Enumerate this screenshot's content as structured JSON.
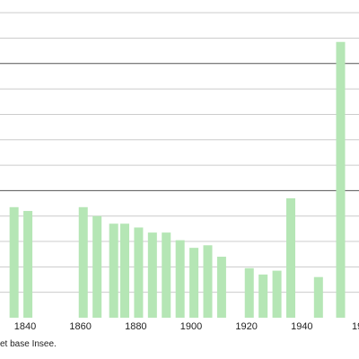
{
  "chart_data": {
    "type": "bar",
    "title": "",
    "xlabel": "",
    "ylabel": "",
    "bar_color": "#b5e6b5",
    "grid": true,
    "grid_minor_color": "#cccccc",
    "grid_major_color": "#555555",
    "x_ticks": [
      "1840",
      "1860",
      "1880",
      "1900",
      "1920",
      "1940",
      "19"
    ],
    "ylim": [
      0,
      1250
    ],
    "y_grid_step": 100,
    "y_major_lines": [
      500,
      1000
    ],
    "categories": [
      "1836",
      "1841",
      "1861",
      "1866",
      "1872",
      "1876",
      "1881",
      "1886",
      "1891",
      "1896",
      "1901",
      "1906",
      "1911",
      "1921",
      "1926",
      "1931",
      "1936",
      "1946",
      "1954"
    ],
    "values": [
      435,
      420,
      435,
      400,
      370,
      370,
      355,
      335,
      335,
      305,
      275,
      285,
      240,
      195,
      170,
      185,
      470,
      160,
      1085
    ]
  },
  "source_text": "et base Insee."
}
